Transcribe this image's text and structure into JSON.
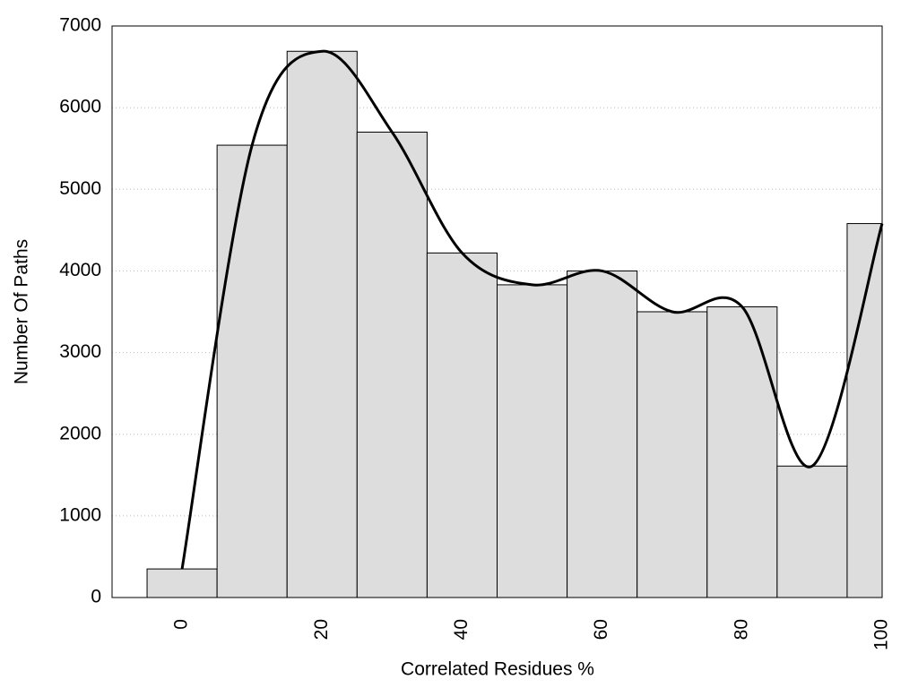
{
  "chart_data": {
    "type": "bar",
    "x": [
      0,
      10,
      20,
      30,
      40,
      50,
      60,
      70,
      80,
      90,
      100
    ],
    "values": [
      350,
      5540,
      6690,
      5700,
      4220,
      3830,
      4000,
      3500,
      3560,
      1610,
      4580
    ],
    "bar_width": 10,
    "color": "#dddddd",
    "line_color": "#000000",
    "smooth_curve": true,
    "xlabel": "Correlated Residues %",
    "ylabel": "Number Of Paths",
    "xlim": [
      -10,
      100
    ],
    "xticks": [
      0,
      20,
      40,
      60,
      80,
      100
    ],
    "ylim": [
      0,
      7000
    ],
    "yticks": [
      0,
      1000,
      2000,
      3000,
      4000,
      5000,
      6000,
      7000
    ],
    "grid": true
  }
}
